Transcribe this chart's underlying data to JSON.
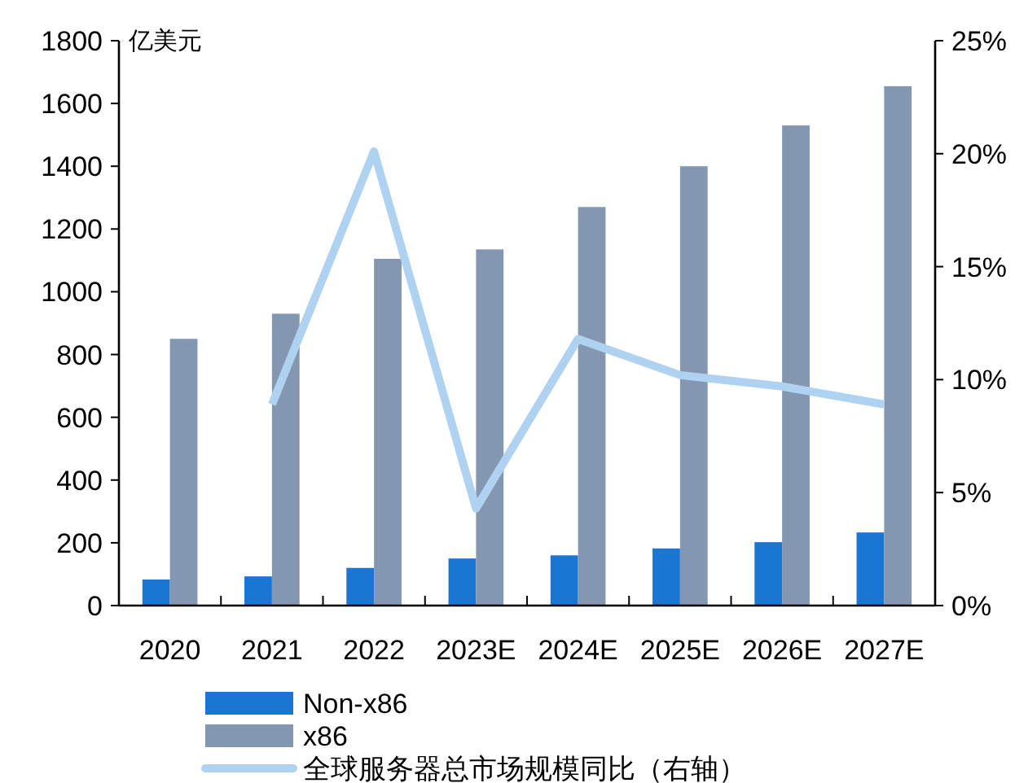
{
  "chart_data": {
    "type": "bar",
    "ylabel": "亿美元",
    "categories": [
      "2020",
      "2021",
      "2022",
      "2023E",
      "2024E",
      "2025E",
      "2026E",
      "2027E"
    ],
    "series": [
      {
        "name": "Non-x86",
        "color": "#1a76d2",
        "values": [
          83,
          93,
          120,
          150,
          160,
          182,
          202,
          233
        ]
      },
      {
        "name": "x86",
        "color": "#8497b0",
        "values": [
          850,
          930,
          1105,
          1135,
          1270,
          1400,
          1530,
          1655
        ]
      },
      {
        "name": "全球服务器总市场规模同比（右轴）",
        "type": "line",
        "axis": "y2",
        "color": "#afd2f0",
        "values": [
          null,
          8.9,
          20.1,
          4.3,
          11.8,
          10.2,
          9.7,
          8.9
        ]
      }
    ],
    "ylim": [
      0,
      1800
    ],
    "yticks": [
      0,
      200,
      400,
      600,
      800,
      1000,
      1200,
      1400,
      1600,
      1800
    ],
    "y2lim": [
      0,
      25
    ],
    "y2ticks": [
      {
        "value": 0,
        "label": "0%"
      },
      {
        "value": 5,
        "label": "5%"
      },
      {
        "value": 10,
        "label": "10%"
      },
      {
        "value": 15,
        "label": "15%"
      },
      {
        "value": 20,
        "label": "20%"
      },
      {
        "value": 25,
        "label": "25%"
      }
    ],
    "legend": "bottom",
    "grid": false
  }
}
